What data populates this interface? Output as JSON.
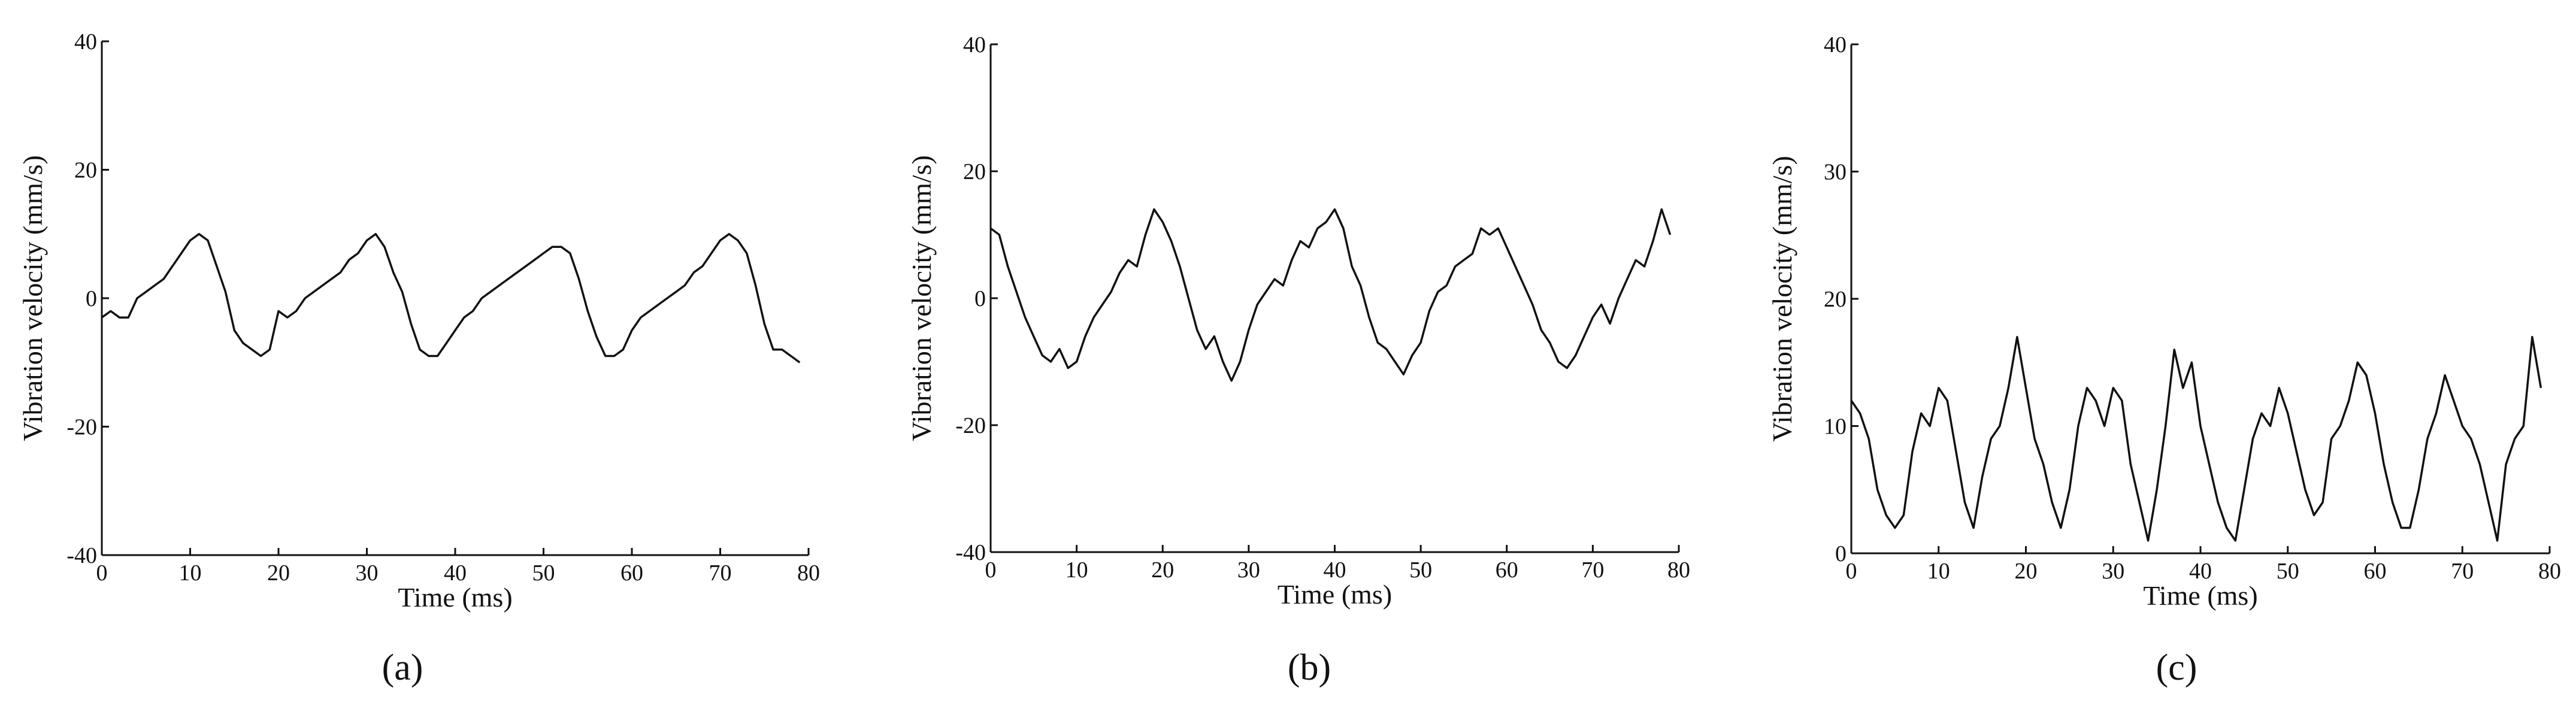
{
  "chart_data": [
    {
      "type": "line",
      "caption": "(a)",
      "xlabel": "Time (ms)",
      "ylabel": "Vibration velocity (mm/s)",
      "color": "#111111",
      "xlim": [
        0,
        80
      ],
      "xticks": [
        0,
        10,
        20,
        30,
        40,
        50,
        60,
        70,
        80
      ],
      "ylim": [
        -40,
        40
      ],
      "yticks": [
        -40,
        -20,
        0,
        20,
        40
      ],
      "x": [
        0,
        1,
        2,
        3,
        4,
        5,
        6,
        7,
        8,
        9,
        10,
        11,
        12,
        13,
        14,
        15,
        16,
        17,
        18,
        19,
        20,
        21,
        22,
        23,
        24,
        25,
        26,
        27,
        28,
        29,
        30,
        31,
        32,
        33,
        34,
        35,
        36,
        37,
        38,
        39,
        40,
        41,
        42,
        43,
        44,
        45,
        46,
        47,
        48,
        49,
        50,
        51,
        52,
        53,
        54,
        55,
        56,
        57,
        58,
        59,
        60,
        61,
        62,
        63,
        64,
        65,
        66,
        67,
        68,
        69,
        70,
        71,
        72,
        73,
        74,
        75,
        76,
        77,
        78,
        79
      ],
      "values": [
        -3,
        -2,
        -3,
        -3,
        0,
        1,
        2,
        3,
        5,
        7,
        9,
        10,
        9,
        5,
        1,
        -5,
        -7,
        -8,
        -9,
        -8,
        -2,
        -3,
        -2,
        0,
        1,
        2,
        3,
        4,
        6,
        7,
        9,
        10,
        8,
        4,
        1,
        -4,
        -8,
        -9,
        -9,
        -7,
        -5,
        -3,
        -2,
        0,
        1,
        2,
        3,
        4,
        5,
        6,
        7,
        8,
        8,
        7,
        3,
        -2,
        -6,
        -9,
        -9,
        -8,
        -5,
        -3,
        -2,
        -1,
        0,
        1,
        2,
        4,
        5,
        7,
        9,
        10,
        9,
        7,
        2,
        -4,
        -8,
        -8,
        -9,
        -10
      ]
    },
    {
      "type": "line",
      "caption": "(b)",
      "xlabel": "Time (ms)",
      "ylabel": "Vibration velocity (mm/s)",
      "color": "#111111",
      "xlim": [
        0,
        80
      ],
      "xticks": [
        0,
        10,
        20,
        30,
        40,
        50,
        60,
        70,
        80
      ],
      "ylim": [
        -40,
        40
      ],
      "yticks": [
        -40,
        -20,
        0,
        20,
        40
      ],
      "x": [
        0,
        1,
        2,
        3,
        4,
        5,
        6,
        7,
        8,
        9,
        10,
        11,
        12,
        13,
        14,
        15,
        16,
        17,
        18,
        19,
        20,
        21,
        22,
        23,
        24,
        25,
        26,
        27,
        28,
        29,
        30,
        31,
        32,
        33,
        34,
        35,
        36,
        37,
        38,
        39,
        40,
        41,
        42,
        43,
        44,
        45,
        46,
        47,
        48,
        49,
        50,
        51,
        52,
        53,
        54,
        55,
        56,
        57,
        58,
        59,
        60,
        61,
        62,
        63,
        64,
        65,
        66,
        67,
        68,
        69,
        70,
        71,
        72,
        73,
        74,
        75,
        76,
        77,
        78,
        79
      ],
      "values": [
        11,
        10,
        5,
        1,
        -3,
        -6,
        -9,
        -10,
        -8,
        -11,
        -10,
        -6,
        -3,
        -1,
        1,
        4,
        6,
        5,
        10,
        14,
        12,
        9,
        5,
        0,
        -5,
        -8,
        -6,
        -10,
        -13,
        -10,
        -5,
        -1,
        1,
        3,
        2,
        6,
        9,
        8,
        11,
        12,
        14,
        11,
        5,
        2,
        -3,
        -7,
        -8,
        -10,
        -12,
        -9,
        -7,
        -2,
        1,
        2,
        5,
        6,
        7,
        11,
        10,
        11,
        8,
        5,
        2,
        -1,
        -5,
        -7,
        -10,
        -11,
        -9,
        -6,
        -3,
        -1,
        -4,
        0,
        3,
        6,
        5,
        9,
        14,
        10
      ]
    },
    {
      "type": "line",
      "caption": "(c)",
      "xlabel": "Time (ms)",
      "ylabel": "Vibration velocity (mm/s)",
      "color": "#111111",
      "xlim": [
        0,
        80
      ],
      "xticks": [
        0,
        10,
        20,
        30,
        40,
        50,
        60,
        70,
        80
      ],
      "ylim": [
        0,
        40
      ],
      "yticks": [
        0,
        10,
        20,
        30,
        40
      ],
      "x": [
        0,
        1,
        2,
        3,
        4,
        5,
        6,
        7,
        8,
        9,
        10,
        11,
        12,
        13,
        14,
        15,
        16,
        17,
        18,
        19,
        20,
        21,
        22,
        23,
        24,
        25,
        26,
        27,
        28,
        29,
        30,
        31,
        32,
        33,
        34,
        35,
        36,
        37,
        38,
        39,
        40,
        41,
        42,
        43,
        44,
        45,
        46,
        47,
        48,
        49,
        50,
        51,
        52,
        53,
        54,
        55,
        56,
        57,
        58,
        59,
        60,
        61,
        62,
        63,
        64,
        65,
        66,
        67,
        68,
        69,
        70,
        71,
        72,
        73,
        74,
        75,
        76,
        77,
        78,
        79
      ],
      "values": [
        12,
        11,
        9,
        5,
        3,
        2,
        3,
        8,
        11,
        10,
        13,
        12,
        8,
        4,
        2,
        6,
        9,
        10,
        13,
        17,
        13,
        9,
        7,
        4,
        2,
        5,
        10,
        13,
        12,
        10,
        13,
        12,
        7,
        4,
        1,
        5,
        10,
        16,
        13,
        15,
        10,
        7,
        4,
        2,
        1,
        5,
        9,
        11,
        10,
        13,
        11,
        8,
        5,
        3,
        4,
        9,
        10,
        12,
        15,
        14,
        11,
        7,
        4,
        2,
        2,
        5,
        9,
        11,
        14,
        12,
        10,
        9,
        7,
        4,
        1,
        7,
        9,
        10,
        17,
        13
      ]
    }
  ]
}
